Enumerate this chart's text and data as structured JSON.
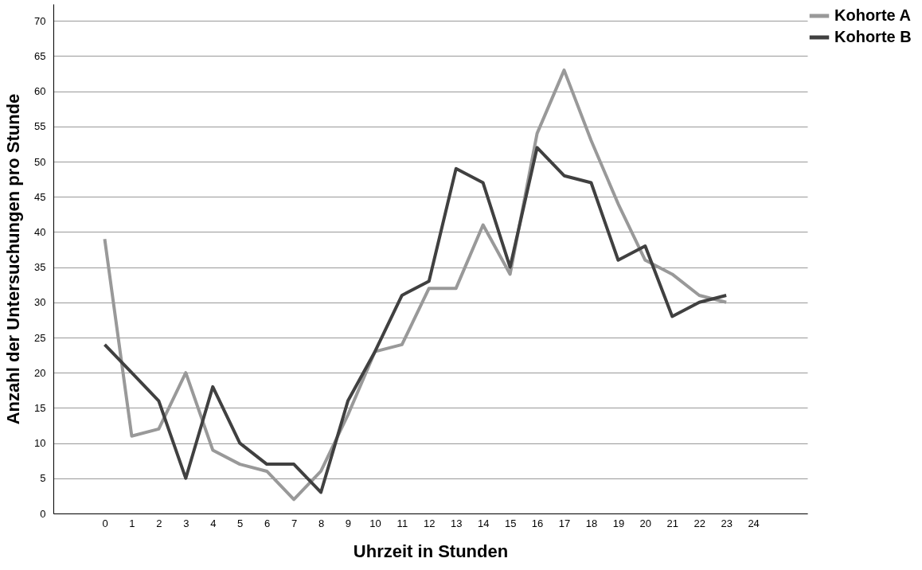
{
  "chart_data": {
    "type": "line",
    "xlabel": "Uhrzeit in Stunden",
    "ylabel": "Anzahl der Untersuchungen pro Stunde",
    "x": [
      0,
      1,
      2,
      3,
      4,
      5,
      6,
      7,
      8,
      9,
      10,
      11,
      12,
      13,
      14,
      15,
      16,
      17,
      18,
      19,
      20,
      21,
      22,
      23
    ],
    "xlim": [
      -1.9,
      26
    ],
    "xticks": [
      0,
      1,
      2,
      3,
      4,
      5,
      6,
      7,
      8,
      9,
      10,
      11,
      12,
      13,
      14,
      15,
      16,
      17,
      18,
      19,
      20,
      21,
      22,
      23,
      24
    ],
    "ylim": [
      0,
      72.4
    ],
    "yticks": [
      0,
      5,
      10,
      15,
      20,
      25,
      30,
      35,
      40,
      45,
      50,
      55,
      60,
      65,
      70
    ],
    "grid": "y",
    "legend": "top right",
    "marker": "none",
    "line_style": "solid",
    "series": [
      {
        "name": "Kohorte A",
        "color": "#999999",
        "values": [
          39,
          11,
          12,
          20,
          9,
          7,
          6,
          2,
          6,
          14,
          23,
          24,
          32,
          32,
          41,
          34,
          54,
          63,
          53,
          44,
          36,
          34,
          31,
          30
        ]
      },
      {
        "name": "Kohorte B",
        "color": "#404040",
        "values": [
          24,
          20,
          16,
          5,
          18,
          10,
          7,
          7,
          3,
          16,
          23,
          31,
          33,
          49,
          47,
          35,
          52,
          48,
          47,
          36,
          38,
          28,
          30,
          31
        ]
      }
    ]
  }
}
